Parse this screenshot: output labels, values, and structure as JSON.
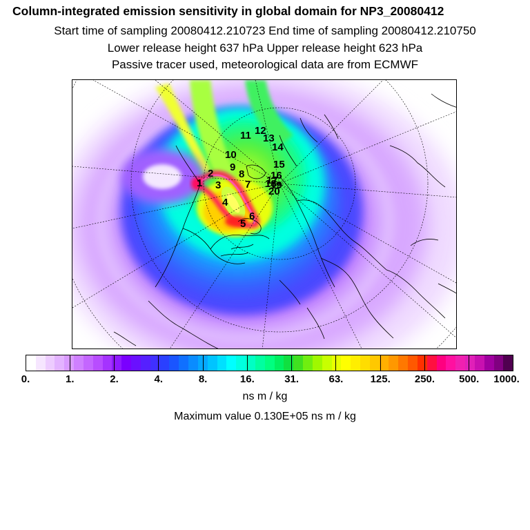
{
  "header": {
    "title": "Column-integrated emission sensitivity in global domain for NP3_20080412",
    "line1": "Start time of sampling 20080412.210723     End time of sampling 20080412.210750",
    "line2": "Lower release height  637 hPa         Upper release height  623 hPa",
    "line3": "Passive tracer used, meteorological data are from ECMWF"
  },
  "map": {
    "projection": "north-polar-stereographic",
    "point_labels": [
      "1",
      "2",
      "3",
      "4",
      "5",
      "6",
      "7",
      "8",
      "9",
      "10",
      "11",
      "12",
      "13",
      "14",
      "15",
      "16",
      "17",
      "18",
      "19",
      "20"
    ]
  },
  "colorbar": {
    "colors": [
      "#ffffff",
      "#f6e6ff",
      "#edccff",
      "#e3b3ff",
      "#d99aff",
      "#cf80ff",
      "#c466ff",
      "#b84dff",
      "#a533ff",
      "#8f1aff",
      "#7a00ff",
      "#6a10ff",
      "#5520ff",
      "#4030ff",
      "#2a40ff",
      "#1a55ff",
      "#1070ff",
      "#0a8cff",
      "#05a8ff",
      "#00c4ff",
      "#00e0ff",
      "#00ffff",
      "#00ffe0",
      "#00ffc4",
      "#00ffa0",
      "#00ff80",
      "#00f060",
      "#10e040",
      "#40e020",
      "#70ee10",
      "#a0f800",
      "#c8ff00",
      "#e8ff00",
      "#ffff00",
      "#ffee00",
      "#ffdd00",
      "#ffc800",
      "#ffb000",
      "#ff9800",
      "#ff7800",
      "#ff5800",
      "#ff3000",
      "#ff1040",
      "#ff0080",
      "#ff10a0",
      "#f020b0",
      "#e020b8",
      "#c810b0",
      "#a000a0",
      "#800080",
      "#500050"
    ],
    "tick_labels": [
      "0.",
      "1.",
      "2.",
      "4.",
      "8.",
      "16.",
      "31.",
      "63.",
      "125.",
      "250.",
      "500.",
      "1000."
    ],
    "units": "ns m / kg"
  },
  "max_value_text": "Maximum value  0.130E+05 ns m / kg"
}
